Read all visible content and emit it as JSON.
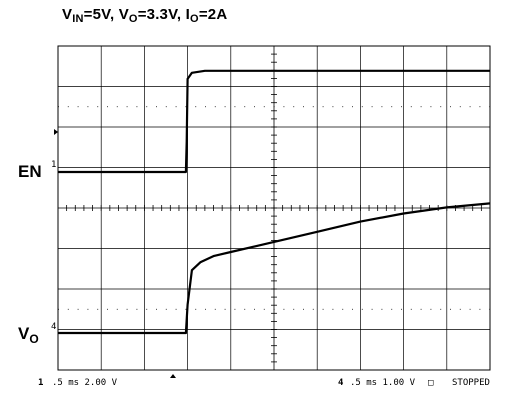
{
  "title": {
    "vin_label": "V",
    "vin_sub": "IN",
    "vin_val": "=5V,",
    "vo_label": "V",
    "vo_sub": "O",
    "vo_val": "=3.3V,",
    "io_label": "I",
    "io_sub": "O",
    "io_val": "=2A"
  },
  "channels": {
    "en": {
      "label": "EN",
      "marker": "1"
    },
    "vo": {
      "label": "V",
      "sub": "O",
      "marker": "4"
    }
  },
  "status_bar": {
    "ch1_marker": "1",
    "ch1_setting": ".5 ms 2.00 V",
    "ch4_marker": "4",
    "ch4_setting": ".5 ms 1.00 V",
    "state_box": "□",
    "state": "STOPPED"
  },
  "colors": {
    "trace": "#000000",
    "grid": "#000000",
    "background": "#ffffff"
  },
  "chart_data": {
    "type": "line",
    "title": "VIN=5V, VO=3.3V, IO=2A",
    "x_unit": "ms",
    "x_range": [
      0,
      5
    ],
    "grid": true,
    "series": [
      {
        "name": "EN",
        "volts_per_div": 2.0,
        "x": [
          0,
          1.48,
          1.49,
          1.5,
          1.55,
          1.7,
          2.5,
          5.0
        ],
        "y_volts": [
          0,
          0,
          1.5,
          4.6,
          4.9,
          5.0,
          5.0,
          5.0
        ]
      },
      {
        "name": "VO",
        "volts_per_div": 1.0,
        "x": [
          0,
          1.48,
          1.5,
          1.55,
          1.65,
          1.8,
          2.0,
          2.5,
          3.0,
          3.5,
          4.0,
          4.5,
          5.0
        ],
        "y_volts": [
          0,
          0,
          0.7,
          1.55,
          1.75,
          1.9,
          2.0,
          2.25,
          2.5,
          2.75,
          2.95,
          3.1,
          3.2
        ]
      }
    ]
  }
}
